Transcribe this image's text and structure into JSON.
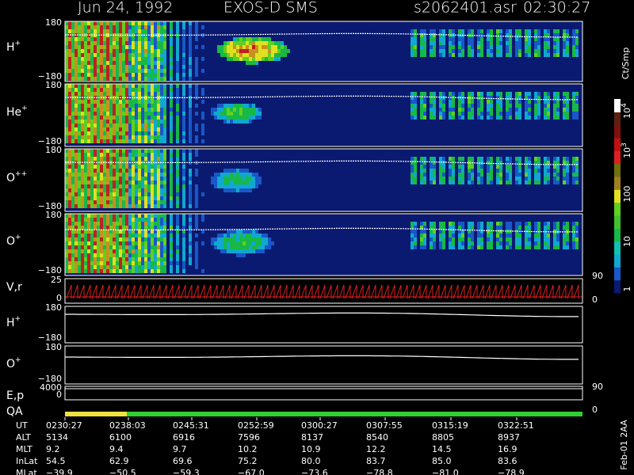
{
  "header": {
    "date": "Jun 24, 1992",
    "instrument": "EXOS-D SMS",
    "file": "s2062401.asr",
    "time": "02:30:27"
  },
  "panels": [
    {
      "label": "H",
      "sup": "+",
      "ticks": [
        "180",
        "−180"
      ]
    },
    {
      "label": "He",
      "sup": "+",
      "ticks": [
        "180",
        "−180"
      ]
    },
    {
      "label": "O",
      "sup": "++",
      "ticks": [
        "180",
        "−180"
      ]
    },
    {
      "label": "O",
      "sup": "+",
      "ticks": [
        "180",
        "−180"
      ]
    },
    {
      "label": "V,r",
      "ticks": [
        "25",
        "0"
      ],
      "right_ticks": [
        "90",
        "0"
      ]
    },
    {
      "label": "H",
      "sup": "+",
      "ticks": [
        "180",
        "−180"
      ]
    },
    {
      "label": "O",
      "sup": "+",
      "ticks": [
        "180",
        "−180"
      ]
    },
    {
      "label": "E,p",
      "ticks": [
        "4000",
        "0"
      ],
      "right_ticks": [
        "90",
        "0"
      ]
    },
    {
      "label": "QA"
    }
  ],
  "colorbar": {
    "unit": "Ct/Smp",
    "labels": [
      {
        "base": "10",
        "exp": "4"
      },
      {
        "base": "10",
        "exp": "3"
      },
      {
        "base": "100"
      },
      {
        "base": "10"
      },
      {
        "base": "1"
      }
    ]
  },
  "ephemeris": {
    "rows": [
      {
        "label": "UT",
        "values": [
          "0230:27",
          "0238:03",
          "0245:31",
          "0252:59",
          "0300:27",
          "0307:55",
          "0315:19",
          "0322:51"
        ]
      },
      {
        "label": "ALT",
        "values": [
          "5134",
          "6100",
          "6916",
          "7596",
          "8137",
          "8540",
          "8805",
          "8937"
        ]
      },
      {
        "label": "MLT",
        "values": [
          "9.2",
          "9.4",
          "9.7",
          "10.2",
          "10.9",
          "12.2",
          "14.5",
          "16.9"
        ]
      },
      {
        "label": "InLat",
        "values": [
          "54.5",
          "62.9",
          "69.6",
          "75.2",
          "80.0",
          "83.7",
          "85.0",
          "83.6"
        ]
      },
      {
        "label": "MLat",
        "values": [
          "−39.9",
          "−50.5",
          "−59.3",
          "−67.0",
          "−73.6",
          "−78.8",
          "−81.0",
          "−78.9"
        ]
      }
    ]
  },
  "footer": "Feb-01 2AA"
}
